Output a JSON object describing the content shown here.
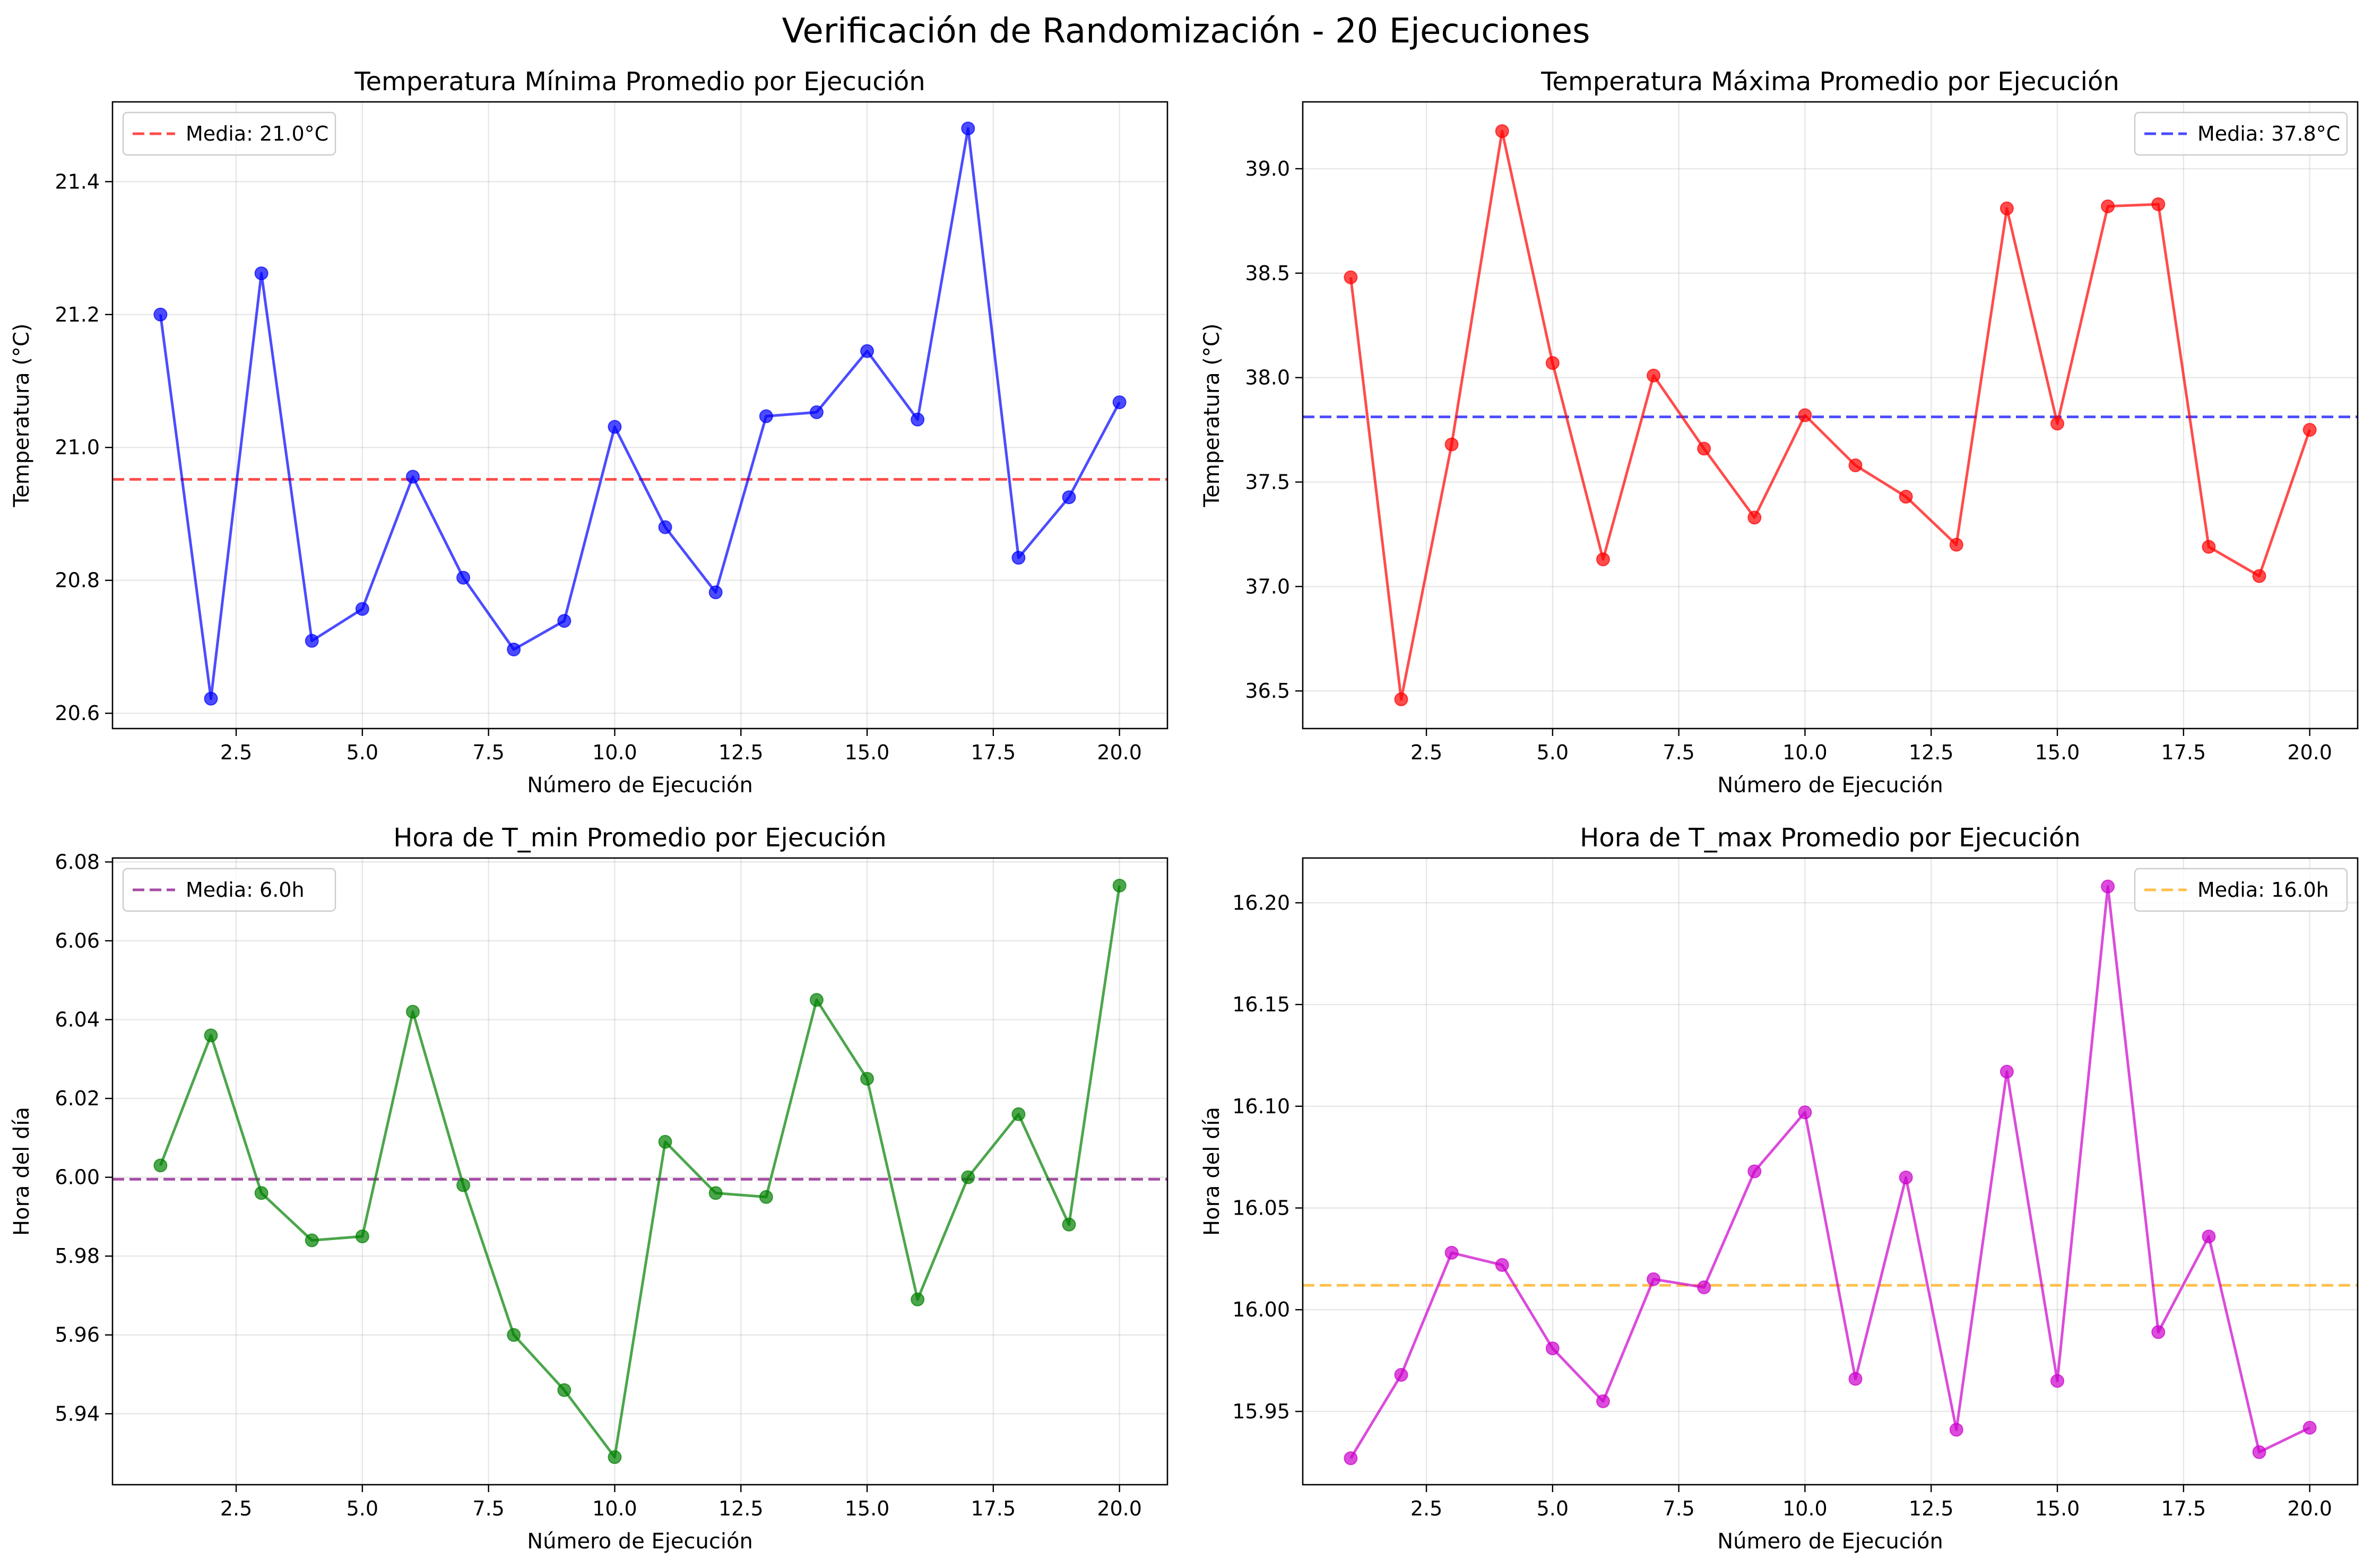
{
  "figure": {
    "title": "Verificación de Randomización - 20 Ejecuciones"
  },
  "chart_data": [
    {
      "type": "line",
      "title": "Temperatura Mínima Promedio por Ejecución",
      "xlabel": "Número de Ejecución",
      "ylabel": "Temperatura (°C)",
      "xlim": [
        0.05,
        20.95
      ],
      "ylim": [
        20.577,
        21.52
      ],
      "xticks": [
        2.5,
        5.0,
        7.5,
        10.0,
        12.5,
        15.0,
        17.5,
        20.0
      ],
      "yticks": [
        20.6,
        20.8,
        21.0,
        21.2,
        21.4
      ],
      "ytick_decimals": 1,
      "grid": true,
      "legend_position": "top-left",
      "color": "#0000ff",
      "mean_line": {
        "value": 20.952,
        "label": "Media: 21.0°C",
        "color": "#ff0000"
      },
      "x": [
        1,
        2,
        3,
        4,
        5,
        6,
        7,
        8,
        9,
        10,
        11,
        12,
        13,
        14,
        15,
        16,
        17,
        18,
        19,
        20
      ],
      "values": [
        21.2,
        20.622,
        21.262,
        20.709,
        20.757,
        20.956,
        20.804,
        20.696,
        20.739,
        21.031,
        20.88,
        20.782,
        21.047,
        21.053,
        21.145,
        21.042,
        21.48,
        20.834,
        20.925,
        21.068
      ]
    },
    {
      "type": "line",
      "title": "Temperatura Máxima Promedio por Ejecución",
      "xlabel": "Número de Ejecución",
      "ylabel": "Temperatura (°C)",
      "xlim": [
        0.05,
        20.95
      ],
      "ylim": [
        36.32,
        39.32
      ],
      "xticks": [
        2.5,
        5.0,
        7.5,
        10.0,
        12.5,
        15.0,
        17.5,
        20.0
      ],
      "yticks": [
        36.5,
        37.0,
        37.5,
        38.0,
        38.5,
        39.0
      ],
      "ytick_decimals": 1,
      "grid": true,
      "legend_position": "top-right",
      "color": "#ff0000",
      "mean_line": {
        "value": 37.812,
        "label": "Media: 37.8°C",
        "color": "#0000ff"
      },
      "x": [
        1,
        2,
        3,
        4,
        5,
        6,
        7,
        8,
        9,
        10,
        11,
        12,
        13,
        14,
        15,
        16,
        17,
        18,
        19,
        20
      ],
      "values": [
        38.48,
        36.46,
        37.68,
        39.18,
        38.07,
        37.13,
        38.01,
        37.66,
        37.33,
        37.82,
        37.58,
        37.43,
        37.2,
        38.81,
        37.78,
        38.82,
        38.83,
        37.19,
        37.05,
        37.75
      ]
    },
    {
      "type": "line",
      "title": "Hora de T_min Promedio por Ejecución",
      "xlabel": "Número de Ejecución",
      "ylabel": "Hora del día",
      "xlim": [
        0.05,
        20.95
      ],
      "ylim": [
        5.922,
        6.081
      ],
      "xticks": [
        2.5,
        5.0,
        7.5,
        10.0,
        12.5,
        15.0,
        17.5,
        20.0
      ],
      "yticks": [
        5.94,
        5.96,
        5.98,
        6.0,
        6.02,
        6.04,
        6.06,
        6.08
      ],
      "ytick_decimals": 2,
      "grid": true,
      "legend_position": "top-left",
      "color": "#008000",
      "mean_line": {
        "value": 5.9995,
        "label": "Media: 6.0h",
        "color": "#800080"
      },
      "x": [
        1,
        2,
        3,
        4,
        5,
        6,
        7,
        8,
        9,
        10,
        11,
        12,
        13,
        14,
        15,
        16,
        17,
        18,
        19,
        20
      ],
      "values": [
        6.003,
        6.036,
        5.996,
        5.984,
        5.985,
        6.042,
        5.998,
        5.96,
        5.946,
        5.929,
        6.009,
        5.996,
        5.995,
        6.045,
        6.025,
        5.969,
        6.0,
        6.016,
        5.988,
        6.074
      ]
    },
    {
      "type": "line",
      "title": "Hora de T_max Promedio por Ejecución",
      "xlabel": "Número de Ejecución",
      "ylabel": "Hora del día",
      "xlim": [
        0.05,
        20.95
      ],
      "ylim": [
        15.914,
        16.222
      ],
      "xticks": [
        2.5,
        5.0,
        7.5,
        10.0,
        12.5,
        15.0,
        17.5,
        20.0
      ],
      "yticks": [
        15.95,
        16.0,
        16.05,
        16.1,
        16.15,
        16.2
      ],
      "ytick_decimals": 2,
      "grid": true,
      "legend_position": "top-right",
      "color": "#cc00cc",
      "mean_line": {
        "value": 16.012,
        "label": "Media: 16.0h",
        "color": "#ffa500"
      },
      "x": [
        1,
        2,
        3,
        4,
        5,
        6,
        7,
        8,
        9,
        10,
        11,
        12,
        13,
        14,
        15,
        16,
        17,
        18,
        19,
        20
      ],
      "values": [
        15.927,
        15.968,
        16.028,
        16.022,
        15.981,
        15.955,
        16.015,
        16.011,
        16.068,
        16.097,
        15.966,
        16.065,
        15.941,
        16.117,
        15.965,
        16.208,
        15.989,
        16.036,
        15.93,
        15.942
      ]
    }
  ]
}
